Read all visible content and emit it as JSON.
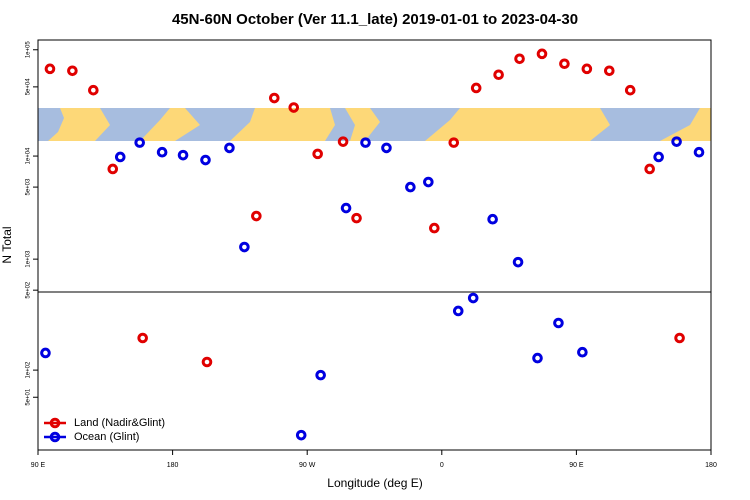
{
  "chart_data": {
    "type": "scatter",
    "title": "45N-60N October (Ver 11.1_late)   2019-01-01 to 2023-04-30",
    "x_label": "Longitude (deg E)",
    "y_label": "N Total",
    "log_y": true,
    "legend": "bottom-left",
    "xlim": [
      90,
      540
    ],
    "xticks": [
      {
        "value": 90,
        "label": "90 E"
      },
      {
        "value": 180,
        "label": "180"
      },
      {
        "value": 270,
        "label": "90 W"
      },
      {
        "value": 360,
        "label": "0"
      },
      {
        "value": 450,
        "label": "90 E"
      },
      {
        "value": 540,
        "label": "180"
      }
    ],
    "panels": [
      {
        "ylim": [
          33700,
          120000
        ],
        "yticks": [
          {
            "value": 100000,
            "label": "1e+05"
          },
          {
            "value": 50000,
            "label": "5e+04"
          }
        ]
      },
      {
        "ylim": [
          480,
          14000
        ],
        "yticks": [
          {
            "value": 10000,
            "label": "1e+04"
          },
          {
            "value": 5000,
            "label": "5e+03"
          },
          {
            "value": 1000,
            "label": "1e+03"
          },
          {
            "value": 500,
            "label": "5e+02"
          }
        ]
      },
      {
        "ylim": [
          13,
          735
        ],
        "yticks": [
          {
            "value": 100,
            "label": "1e+02"
          },
          {
            "value": 50,
            "label": "5e+01"
          }
        ]
      }
    ],
    "series": [
      {
        "name": "Land (Nadir&Glint)",
        "color": "#e00000",
        "x": [
          98,
          113,
          127,
          140,
          160,
          203,
          236,
          248,
          261,
          277,
          294,
          303,
          355,
          368,
          383,
          398,
          412,
          427,
          442,
          457,
          472,
          486,
          499,
          519
        ],
        "values": [
          70000,
          67500,
          47000,
          7500,
          227,
          123,
          2620,
          40600,
          34000,
          10500,
          13800,
          2500,
          2000,
          13500,
          49000,
          62700,
          84500,
          92700,
          77000,
          70000,
          67500,
          47000,
          7500,
          227
        ]
      },
      {
        "name": "Ocean (Glint)",
        "color": "#0000e0",
        "x": [
          95,
          145,
          158,
          173,
          187,
          202,
          218,
          228,
          266,
          279,
          296,
          309,
          323,
          339,
          351,
          371,
          381,
          394,
          411,
          424,
          438,
          454,
          505,
          517,
          532
        ],
        "values": [
          155,
          9800,
          13500,
          10900,
          10200,
          9150,
          12000,
          1310,
          19,
          88,
          3130,
          13500,
          12000,
          5000,
          5600,
          453,
          630,
          2440,
          935,
          136,
          333,
          158,
          9800,
          13800,
          10900
        ]
      }
    ]
  }
}
